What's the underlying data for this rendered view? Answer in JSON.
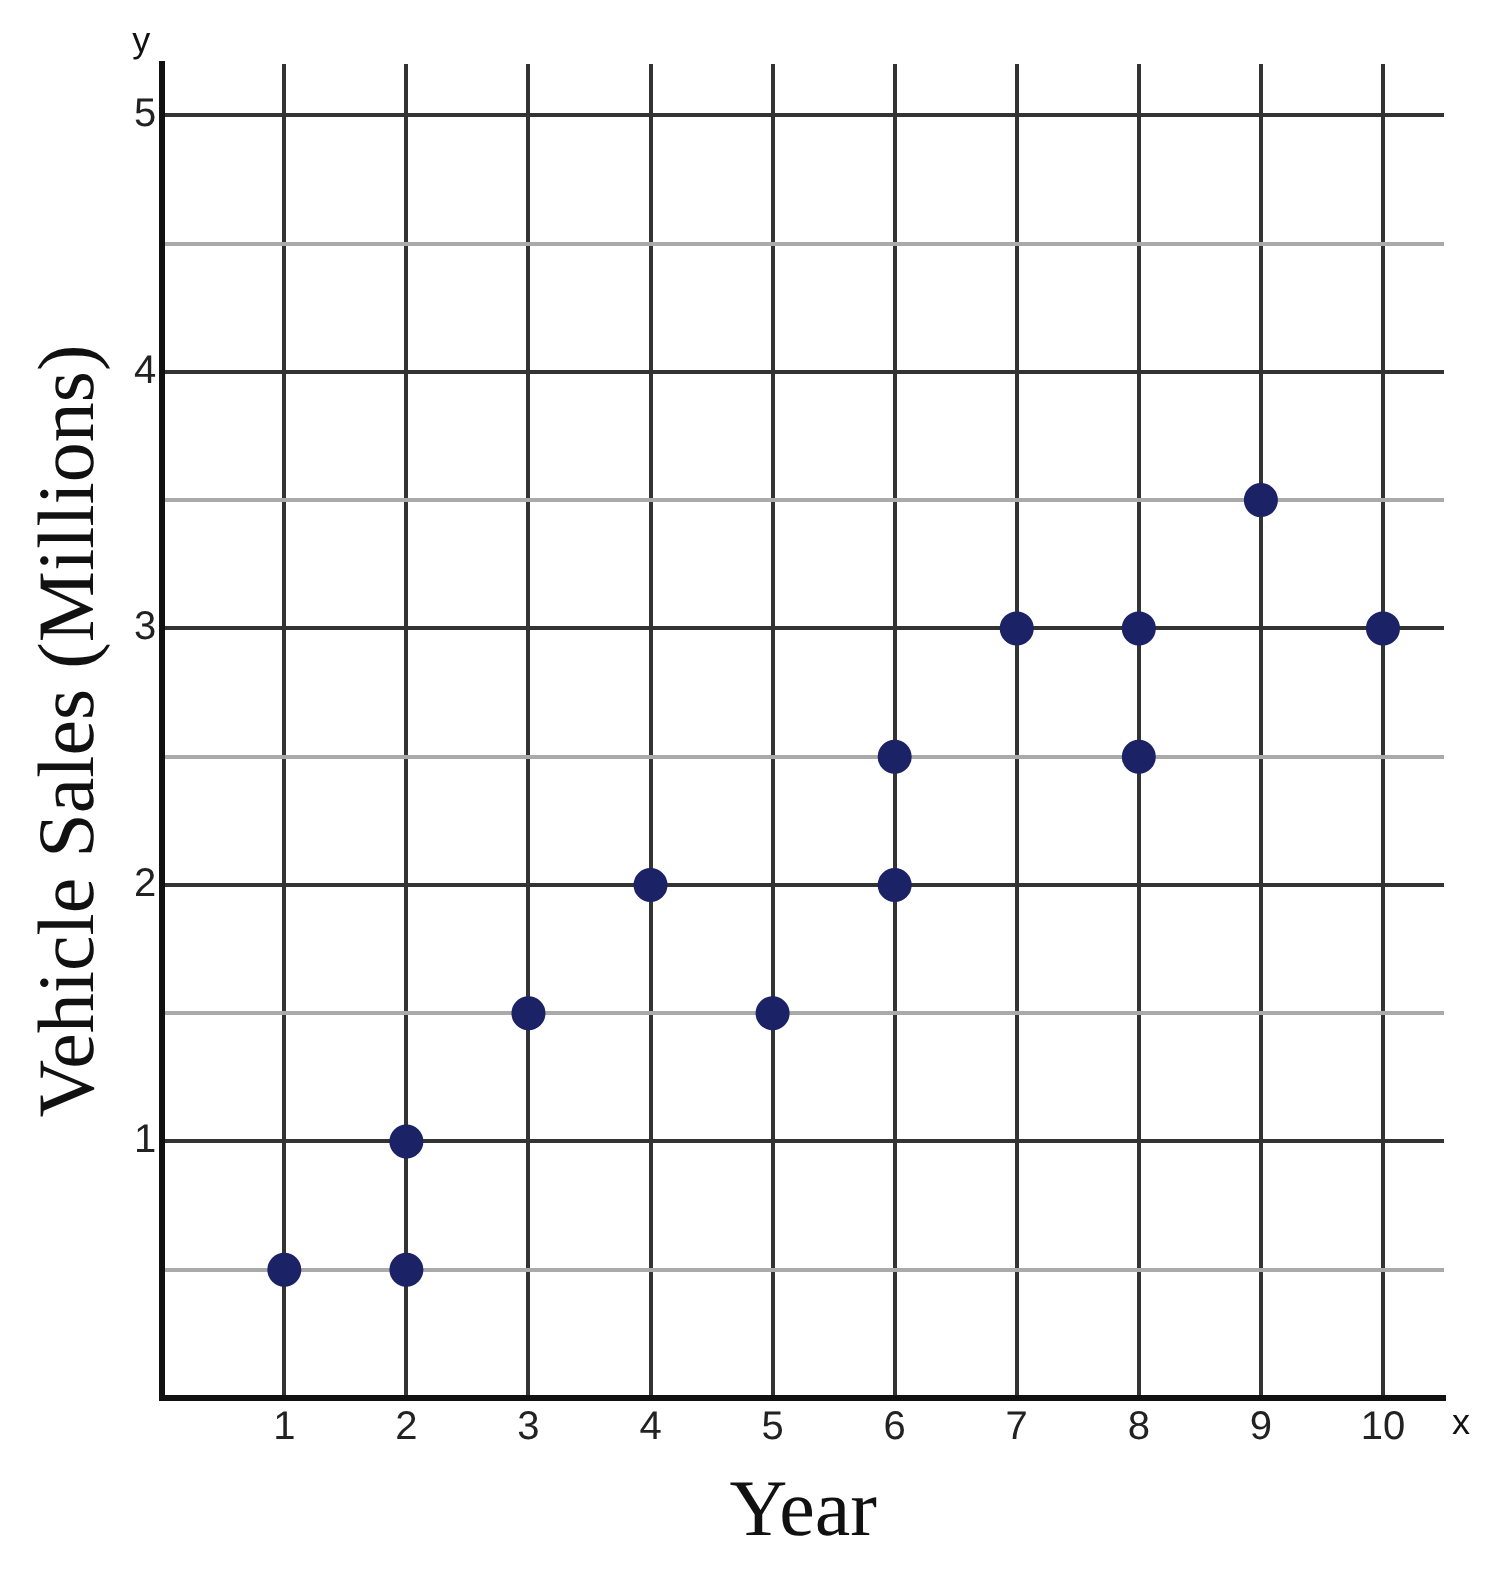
{
  "chart_data": {
    "type": "scatter",
    "xlabel": "Year",
    "ylabel": "Vehicle Sales (Millions)",
    "x": [
      1,
      2,
      2,
      3,
      4,
      5,
      6,
      6,
      7,
      8,
      8,
      9,
      10
    ],
    "values": [
      0.5,
      0.5,
      1,
      1.5,
      2,
      1.5,
      2.5,
      2,
      3,
      3,
      2.5,
      3.5,
      3
    ],
    "color": "#1c2266",
    "marker": "circle",
    "grid": true,
    "xlim": [
      0,
      10.5
    ],
    "xticks": [
      1,
      2,
      3,
      4,
      5,
      6,
      7,
      8,
      9,
      10
    ],
    "ylim": [
      0,
      5.2
    ],
    "yticks": [
      {
        "value": 0.5,
        "label": null
      },
      1,
      {
        "value": 1.5,
        "label": null
      },
      2,
      {
        "value": 2.5,
        "label": null
      },
      3,
      {
        "value": 3.5,
        "label": null
      },
      4,
      {
        "value": 4.5,
        "label": null
      },
      5
    ],
    "annotations": [
      "y",
      "x"
    ]
  }
}
